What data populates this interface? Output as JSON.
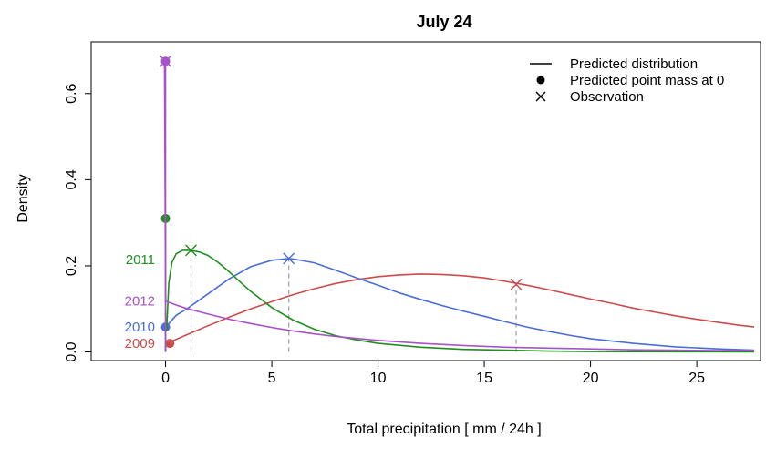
{
  "chart_data": {
    "type": "line",
    "title": "July 24",
    "xlabel": "Total precipitation [ mm / 24h ]",
    "ylabel": "Density",
    "xlim": [
      -3.5,
      28
    ],
    "ylim": [
      -0.02,
      0.72
    ],
    "x_ticks": [
      0,
      5,
      10,
      15,
      20,
      25
    ],
    "y_ticks": [
      0.0,
      0.2,
      0.4,
      0.6
    ],
    "x_tick_labels": [
      "0",
      "5",
      "10",
      "15",
      "20",
      "25"
    ],
    "y_tick_labels": [
      "0.0",
      "0.2",
      "0.4",
      "0.6"
    ],
    "grid": false,
    "legend_position": "top-right",
    "legend": [
      {
        "label": "Predicted distribution",
        "symbol": "line"
      },
      {
        "label": "Predicted point mass at 0",
        "symbol": "dot"
      },
      {
        "label": "Observation",
        "symbol": "cross"
      }
    ],
    "series": [
      {
        "name": "2009",
        "color": "#cd4b4b",
        "point_mass": 0.02,
        "observation": {
          "x": 16.5,
          "y": 0.157
        },
        "x": [
          0.2,
          1,
          2,
          3,
          4,
          5,
          6,
          7,
          8,
          9,
          10,
          11,
          12,
          13,
          14,
          15,
          16,
          17,
          18,
          19,
          20,
          21,
          22,
          23,
          24,
          25,
          26,
          27,
          27.7
        ],
        "y": [
          0.023,
          0.04,
          0.061,
          0.081,
          0.1,
          0.117,
          0.133,
          0.147,
          0.159,
          0.168,
          0.175,
          0.179,
          0.181,
          0.18,
          0.177,
          0.172,
          0.164,
          0.155,
          0.145,
          0.134,
          0.123,
          0.113,
          0.102,
          0.093,
          0.084,
          0.076,
          0.069,
          0.062,
          0.058
        ]
      },
      {
        "name": "2010",
        "color": "#4a6ed6",
        "point_mass": 0.058,
        "observation": {
          "x": 5.8,
          "y": 0.217
        },
        "x": [
          0.05,
          0.5,
          1,
          2,
          3,
          4,
          5,
          5.8,
          6,
          7,
          8,
          9,
          10,
          11,
          12,
          13,
          14,
          15,
          16,
          17,
          18,
          19,
          20,
          22,
          24,
          26,
          27.7
        ],
        "y": [
          0.06,
          0.085,
          0.1,
          0.135,
          0.17,
          0.198,
          0.213,
          0.217,
          0.216,
          0.207,
          0.19,
          0.172,
          0.155,
          0.137,
          0.122,
          0.108,
          0.095,
          0.083,
          0.07,
          0.058,
          0.048,
          0.039,
          0.031,
          0.02,
          0.012,
          0.007,
          0.004
        ]
      },
      {
        "name": "2011",
        "color": "#1f8f1f",
        "point_mass": 0.31,
        "observation": {
          "x": 1.2,
          "y": 0.236
        },
        "x": [
          0.05,
          0.15,
          0.3,
          0.5,
          0.8,
          1.2,
          1.6,
          2,
          2.5,
          3,
          3.5,
          4,
          5,
          6,
          7,
          8,
          9,
          10,
          12,
          14,
          16,
          18,
          20,
          24,
          27.7
        ],
        "y": [
          0.05,
          0.16,
          0.208,
          0.228,
          0.236,
          0.236,
          0.232,
          0.224,
          0.207,
          0.186,
          0.163,
          0.141,
          0.103,
          0.074,
          0.053,
          0.038,
          0.028,
          0.02,
          0.011,
          0.006,
          0.004,
          0.002,
          0.001,
          0.0005,
          0.0003
        ]
      },
      {
        "name": "2012",
        "color": "#a852c9",
        "point_mass": 0.675,
        "observation": {
          "x": 0.0,
          "y": 0.675
        },
        "x": [
          -0.05,
          0,
          0.5,
          1,
          2,
          3,
          4,
          5,
          6,
          7,
          8,
          10,
          12,
          14,
          16,
          18,
          20,
          22,
          24,
          26,
          27.7
        ],
        "y": [
          0.675,
          0.118,
          0.109,
          0.101,
          0.088,
          0.076,
          0.066,
          0.057,
          0.049,
          0.042,
          0.036,
          0.027,
          0.02,
          0.015,
          0.011,
          0.009,
          0.007,
          0.005,
          0.004,
          0.003,
          0.003
        ]
      }
    ]
  }
}
